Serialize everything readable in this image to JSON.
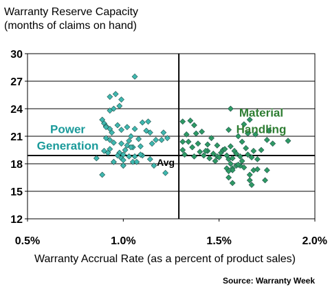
{
  "chart_data": {
    "type": "scatter",
    "title": "Warranty Reserve Capacity",
    "subtitle": "(months of claims on hand)",
    "xlabel": "Warranty Accrual Rate (as a percent of product sales)",
    "ylabel": "",
    "source": "Source: Warranty Week",
    "xlim": [
      0.5,
      2.0
    ],
    "ylim": [
      12,
      30
    ],
    "xticks": [
      0.5,
      1.0,
      1.5,
      2.0
    ],
    "xtick_labels": [
      "0.5%",
      "1.0%",
      "1.5%",
      "2.0%"
    ],
    "yticks": [
      12,
      15,
      18,
      21,
      24,
      27,
      30
    ],
    "ytick_labels": [
      "12",
      "15",
      "18",
      "21",
      "24",
      "27",
      "30"
    ],
    "grid": "horizontal",
    "reference_lines": {
      "avg_x": 1.29,
      "avg_y": 18.9,
      "avg_label": "Avg"
    },
    "annotations": [
      {
        "text_lines": [
          "Power",
          "Generation"
        ],
        "color": "#1a9a9a",
        "x": 0.71,
        "y": 20.9
      },
      {
        "text_lines": [
          "Material",
          "Handling"
        ],
        "color": "#2e7d32",
        "x": 1.72,
        "y": 22.7
      }
    ],
    "series": [
      {
        "group": "power-generation",
        "color": "#3fb8b0",
        "x": [
          0.9,
          0.91,
          0.93,
          0.93,
          1.06,
          0.93,
          0.96,
          0.99,
          0.98,
          0.95,
          0.89,
          0.91,
          0.94,
          0.97,
          0.99,
          1.04,
          1.02,
          1.1,
          1.13,
          1.06,
          1.12,
          1.14,
          0.91,
          0.93,
          1.03,
          1.08,
          0.95,
          0.99,
          1.02,
          1.05,
          1.09,
          1.15,
          0.9,
          0.93,
          0.98,
          1.0,
          1.01,
          1.04,
          1.06,
          1.1,
          1.17,
          0.86,
          0.92,
          0.97,
          0.99,
          1.03,
          1.09,
          1.14,
          0.95,
          1.0,
          1.05,
          1.22,
          0.89,
          1.0,
          1.07,
          1.16,
          1.21,
          1.2,
          1.23,
          0.95,
          1.0
        ],
        "y": [
          22.4,
          22.1,
          21.8,
          23.8,
          27.5,
          25.3,
          25.6,
          25.0,
          24.3,
          24.0,
          22.8,
          22.0,
          21.4,
          22.2,
          21.7,
          21.0,
          22.0,
          22.5,
          22.6,
          21.8,
          21.6,
          21.4,
          20.8,
          20.6,
          20.5,
          20.7,
          20.3,
          20.2,
          20.0,
          19.8,
          19.9,
          20.2,
          19.4,
          19.6,
          19.2,
          19.0,
          19.5,
          19.8,
          18.8,
          18.9,
          20.6,
          18.6,
          19.2,
          18.9,
          18.6,
          18.8,
          19.0,
          18.5,
          18.2,
          17.8,
          18.2,
          17.0,
          16.8,
          18.4,
          18.2,
          17.8,
          21.4,
          20.6,
          20.8,
          18.2,
          17.8
        ]
      },
      {
        "group": "material-handling",
        "color": "#2e9a64",
        "x": [
          1.31,
          1.35,
          1.37,
          1.41,
          1.33,
          1.38,
          1.46,
          1.56,
          1.66,
          1.63,
          1.55,
          1.69,
          1.76,
          1.6,
          1.65,
          1.75,
          1.34,
          1.39,
          1.31,
          1.36,
          1.44,
          1.49,
          1.62,
          1.78,
          1.86,
          1.4,
          1.44,
          1.47,
          1.51,
          1.52,
          1.53,
          1.56,
          1.58,
          1.59,
          1.64,
          1.68,
          1.72,
          1.31,
          1.32,
          1.37,
          1.42,
          1.49,
          1.5,
          1.54,
          1.55,
          1.57,
          1.61,
          1.65,
          1.67,
          1.7,
          1.56,
          1.59,
          1.62,
          1.45,
          1.57,
          1.61,
          1.48,
          1.54,
          1.57,
          1.6,
          1.63,
          1.66,
          1.68,
          1.7,
          1.55,
          1.57,
          1.67,
          1.74,
          1.55,
          1.66,
          1.75,
          1.43
        ],
        "y": [
          22.6,
          22.7,
          22.2,
          21.5,
          21.2,
          21.3,
          20.8,
          24.0,
          22.8,
          22.3,
          21.7,
          21.2,
          21.6,
          21.0,
          21.3,
          20.6,
          20.4,
          20.2,
          20.4,
          19.8,
          20.1,
          20.0,
          20.4,
          20.2,
          20.5,
          19.3,
          19.4,
          19.1,
          19.2,
          19.5,
          19.6,
          19.9,
          19.4,
          19.1,
          19.7,
          19.4,
          19.5,
          19.5,
          19.0,
          18.8,
          18.9,
          18.8,
          18.7,
          18.9,
          18.5,
          18.6,
          18.8,
          19.0,
          18.7,
          18.5,
          18.0,
          17.8,
          18.3,
          18.6,
          17.5,
          17.8,
          18.3,
          17.5,
          17.3,
          17.9,
          17.6,
          16.2,
          17.3,
          17.4,
          16.5,
          15.9,
          15.7,
          16.2,
          17.2,
          16.8,
          17.3,
          19.4
        ]
      }
    ]
  }
}
